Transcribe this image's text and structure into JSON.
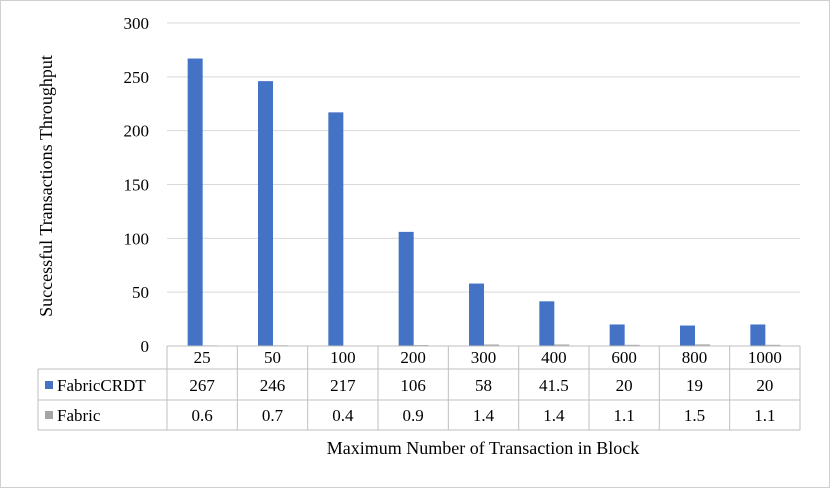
{
  "chart_data": {
    "type": "bar",
    "xlabel": "Maximum Number of Transaction in Block",
    "ylabel": "Successful Transactions Throughput",
    "ylim": [
      0,
      300
    ],
    "yticks": [
      0,
      50,
      100,
      150,
      200,
      250,
      300
    ],
    "grid": true,
    "legend": "data-table-left",
    "categories": [
      "25",
      "50",
      "100",
      "200",
      "300",
      "400",
      "600",
      "800",
      "1000"
    ],
    "series": [
      {
        "name": "FabricCRDT",
        "color": "#4472c4",
        "values": [
          267,
          246,
          217,
          106,
          58,
          41.5,
          20,
          19,
          20
        ],
        "labels": [
          "267",
          "246",
          "217",
          "106",
          "58",
          "41.5",
          "20",
          "19",
          "20"
        ]
      },
      {
        "name": "Fabric",
        "color": "#a5a5a5",
        "values": [
          0.6,
          0.7,
          0.4,
          0.9,
          1.4,
          1.4,
          1.1,
          1.5,
          1.1
        ],
        "labels": [
          "0.6",
          "0.7",
          "0.4",
          "0.9",
          "1.4",
          "1.4",
          "1.1",
          "1.5",
          "1.1"
        ]
      }
    ]
  }
}
